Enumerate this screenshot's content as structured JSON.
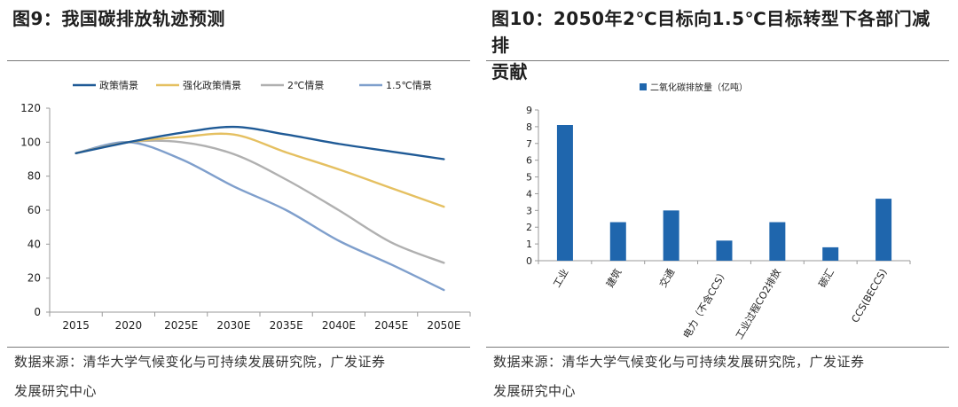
{
  "colors": {
    "policy": "#1f5a96",
    "enhanced": "#e5c061",
    "two_deg": "#b0b0b0",
    "one_five_deg": "#7f9fcc",
    "bar": "#1f66ad",
    "axis": "#9a9a9a"
  },
  "left": {
    "title": "图9：我国碳排放轨迹预测",
    "source_line1": "数据来源：清华大学气候变化与可持续发展研究院，广发证券",
    "source_line2": "发展研究中心"
  },
  "right": {
    "title_line1": "图10：2050年2℃目标向1.5℃目标转型下各部门减排",
    "title_line2": "贡献",
    "source_line1": "数据来源：清华大学气候变化与可持续发展研究院，广发证券",
    "source_line2": "发展研究中心"
  },
  "chart_data": [
    {
      "type": "line",
      "title": "我国碳排放轨迹预测",
      "x": [
        "2015",
        "2020",
        "2025E",
        "2030E",
        "2035E",
        "2040E",
        "2045E",
        "2050E"
      ],
      "y_ticks": [
        "0",
        "20",
        "40",
        "60",
        "80",
        "100",
        "120"
      ],
      "ylim": [
        0,
        120
      ],
      "legend_position": "top",
      "series": [
        {
          "name": "政策情景",
          "color_key": "policy",
          "values": [
            93.5,
            100,
            105.5,
            109,
            104.5,
            99,
            94.5,
            90
          ]
        },
        {
          "name": "强化政策情景",
          "color_key": "enhanced",
          "values": [
            93.5,
            100,
            103,
            104.5,
            94,
            84,
            73,
            62
          ]
        },
        {
          "name": "2℃情景",
          "color_key": "two_deg",
          "values": [
            93.5,
            100,
            100,
            93,
            78,
            60,
            41,
            29
          ]
        },
        {
          "name": "1.5℃情景",
          "color_key": "one_five_deg",
          "values": [
            93.5,
            100,
            90,
            74,
            60,
            42,
            28,
            13
          ]
        }
      ]
    },
    {
      "type": "bar",
      "title": "2050年2℃目标向1.5℃目标转型下各部门减排贡献",
      "legend": "二氧化碳排放量（亿吨）",
      "legend_position": "top",
      "categories": [
        "工业",
        "建筑",
        "交通",
        "电力（不含CCS）",
        "工业过程CO2排放",
        "碳汇",
        "CCS(BECCS)"
      ],
      "values": [
        8.1,
        2.3,
        3.0,
        1.2,
        2.3,
        0.8,
        3.7
      ],
      "y_ticks": [
        "0",
        "1",
        "2",
        "3",
        "4",
        "5",
        "6",
        "7",
        "8",
        "9"
      ],
      "ylim": [
        0,
        9
      ]
    }
  ]
}
